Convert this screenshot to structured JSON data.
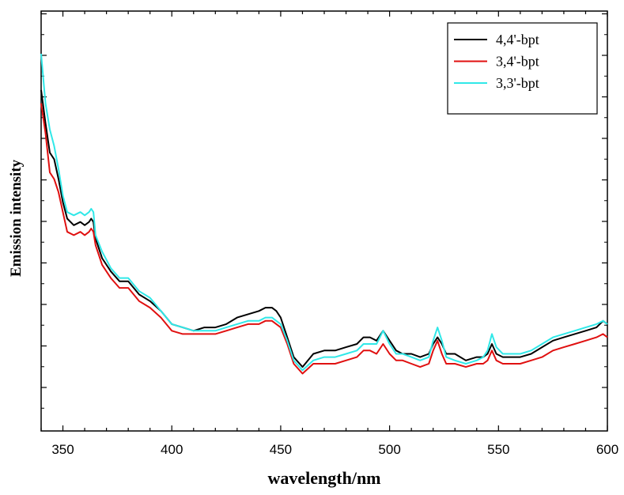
{
  "chart_data": {
    "type": "line",
    "title": "",
    "xlabel": "wavelength/nm",
    "ylabel": "Emission intensity",
    "xlim": [
      340,
      600
    ],
    "ylim": [
      0,
      100
    ],
    "x_ticks": [
      350,
      400,
      450,
      500,
      550,
      600
    ],
    "y_ticks_labeled": false,
    "grid": false,
    "legend_position": "top-right",
    "series": [
      {
        "name": "4,4'-bpt",
        "color": "#000000",
        "x": [
          340,
          342,
          344,
          346,
          348,
          350,
          352,
          355,
          358,
          360,
          362,
          363,
          364,
          365,
          368,
          372,
          376,
          380,
          385,
          390,
          395,
          400,
          405,
          410,
          415,
          420,
          425,
          430,
          435,
          440,
          443,
          446,
          448,
          450,
          453,
          456,
          460,
          465,
          470,
          475,
          480,
          485,
          488,
          491,
          494,
          497,
          500,
          503,
          506,
          510,
          514,
          518,
          520,
          522,
          524,
          526,
          530,
          535,
          540,
          543,
          545,
          547,
          549,
          552,
          556,
          560,
          565,
          570,
          575,
          580,
          585,
          590,
          595,
          598,
          600
        ],
        "y": [
          89,
          79,
          70,
          68,
          62,
          55,
          50,
          48,
          49,
          48,
          49,
          50,
          49,
          44,
          38,
          34,
          31,
          31,
          27,
          25,
          22,
          18,
          17,
          16,
          17,
          17,
          18,
          20,
          21,
          22,
          23,
          23,
          22,
          20,
          14,
          8,
          5,
          9,
          10,
          10,
          11,
          12,
          14,
          14,
          13,
          16,
          13,
          10,
          9,
          9,
          8,
          9,
          12,
          14,
          12,
          9,
          9,
          7,
          8,
          8,
          9,
          12,
          9,
          8,
          8,
          8,
          9,
          11,
          13,
          14,
          15,
          16,
          17,
          19,
          18
        ]
      },
      {
        "name": "3,4'-bpt",
        "color": "#e01010",
        "x": [
          340,
          342,
          344,
          346,
          348,
          350,
          352,
          355,
          358,
          360,
          362,
          363,
          364,
          365,
          368,
          372,
          376,
          380,
          385,
          390,
          395,
          400,
          405,
          410,
          415,
          420,
          425,
          430,
          435,
          440,
          443,
          446,
          448,
          450,
          453,
          456,
          460,
          465,
          470,
          475,
          480,
          485,
          488,
          491,
          494,
          497,
          500,
          503,
          506,
          510,
          514,
          518,
          520,
          522,
          524,
          526,
          530,
          535,
          540,
          543,
          545,
          547,
          549,
          552,
          556,
          560,
          565,
          570,
          575,
          580,
          585,
          590,
          595,
          598,
          600
        ],
        "y": [
          85,
          76,
          64,
          62,
          58,
          52,
          46,
          45,
          46,
          45,
          46,
          47,
          46,
          42,
          36,
          32,
          29,
          29,
          25,
          23,
          20,
          16,
          15,
          15,
          15,
          15,
          16,
          17,
          18,
          18,
          19,
          19,
          18,
          17,
          12,
          6,
          3,
          6,
          6,
          6,
          7,
          8,
          10,
          10,
          9,
          12,
          9,
          7,
          7,
          6,
          5,
          6,
          10,
          13,
          9,
          6,
          6,
          5,
          6,
          6,
          7,
          10,
          7,
          6,
          6,
          6,
          7,
          8,
          10,
          11,
          12,
          13,
          14,
          15,
          14
        ]
      },
      {
        "name": "3,3'-bpt",
        "color": "#30e8e8",
        "x": [
          340,
          342,
          344,
          346,
          348,
          350,
          352,
          355,
          358,
          360,
          362,
          363,
          364,
          365,
          368,
          372,
          376,
          380,
          385,
          390,
          395,
          400,
          405,
          410,
          415,
          420,
          425,
          430,
          435,
          440,
          443,
          446,
          448,
          450,
          453,
          456,
          460,
          465,
          470,
          475,
          480,
          485,
          488,
          491,
          494,
          497,
          500,
          503,
          506,
          510,
          514,
          518,
          520,
          522,
          524,
          526,
          530,
          535,
          540,
          543,
          545,
          547,
          549,
          552,
          556,
          560,
          565,
          570,
          575,
          580,
          585,
          590,
          595,
          598,
          600
        ],
        "y": [
          100,
          85,
          77,
          72,
          65,
          57,
          52,
          51,
          52,
          51,
          52,
          53,
          52,
          45,
          40,
          35,
          32,
          32,
          28,
          26,
          22,
          18,
          17,
          16,
          16,
          16,
          17,
          18,
          19,
          19,
          20,
          20,
          19,
          18,
          13,
          7,
          4,
          7,
          8,
          8,
          9,
          10,
          12,
          12,
          12,
          16,
          12,
          9,
          9,
          8,
          7,
          8,
          13,
          17,
          13,
          8,
          7,
          6,
          7,
          8,
          10,
          15,
          11,
          9,
          9,
          9,
          10,
          12,
          14,
          15,
          16,
          17,
          18,
          19,
          18
        ]
      }
    ]
  }
}
